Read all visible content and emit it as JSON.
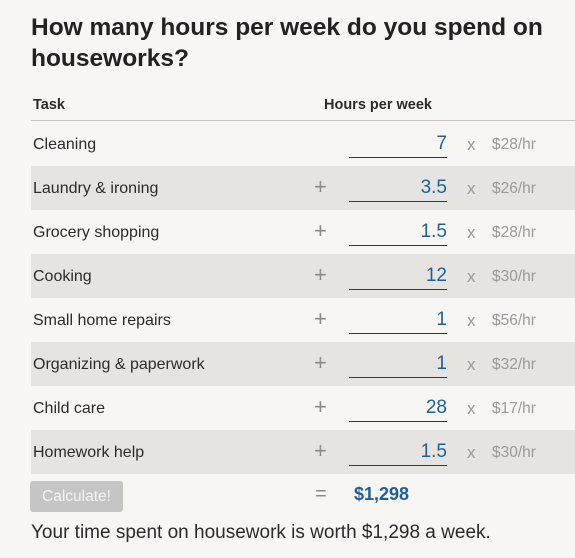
{
  "title": "How many hours per week do you spend on houseworks?",
  "header": {
    "task": "Task",
    "hours": "Hours per week"
  },
  "rows": [
    {
      "task": "Cleaning",
      "hours": "7",
      "rate": "$28/hr",
      "plus": ""
    },
    {
      "task": "Laundry & ironing",
      "hours": "3.5",
      "rate": "$26/hr",
      "plus": "+"
    },
    {
      "task": "Grocery shopping",
      "hours": "1.5",
      "rate": "$28/hr",
      "plus": "+"
    },
    {
      "task": "Cooking",
      "hours": "12",
      "rate": "$30/hr",
      "plus": "+"
    },
    {
      "task": "Small home repairs",
      "hours": "1",
      "rate": "$56/hr",
      "plus": "+"
    },
    {
      "task": "Organizing & paperwork",
      "hours": "1",
      "rate": "$32/hr",
      "plus": "+"
    },
    {
      "task": "Child care",
      "hours": "28",
      "rate": "$17/hr",
      "plus": "+"
    },
    {
      "task": "Homework help",
      "hours": "1.5",
      "rate": "$30/hr",
      "plus": "+"
    }
  ],
  "times_symbol": "x",
  "equals_symbol": "=",
  "calculate_label": "Calculate!",
  "total": "$1,298",
  "summary": "Your time spent on housework is worth $1,298 a week.",
  "colors": {
    "accent": "#1f5f99",
    "row_alt": "#e6e4e0",
    "background": "#f8f6f2"
  }
}
